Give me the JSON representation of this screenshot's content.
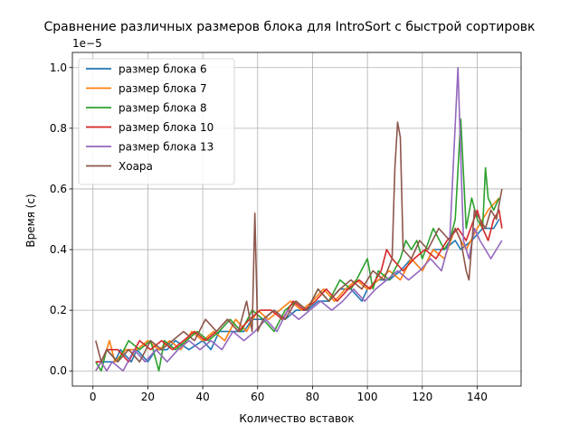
{
  "chart_data": {
    "type": "line",
    "title": "Сравнение различных размеров блока для IntroSort с быстрой сортировк",
    "xlabel": "Количество вставок",
    "ylabel": "Время (с)",
    "y_offset_label": "1e−5",
    "xlim": [
      -7.5,
      156
    ],
    "ylim": [
      -0.05,
      1.05
    ],
    "x_ticks": [
      0,
      20,
      40,
      60,
      80,
      100,
      120,
      140
    ],
    "y_ticks": [
      0.0,
      0.2,
      0.4,
      0.6,
      0.8,
      1.0
    ],
    "x_tick_labels": [
      "0",
      "20",
      "40",
      "60",
      "80",
      "100",
      "120",
      "140"
    ],
    "y_tick_labels": [
      "0.0",
      "0.2",
      "0.4",
      "0.6",
      "0.8",
      "1.0"
    ],
    "grid": true,
    "legend_position": "upper-left",
    "series": [
      {
        "name": "размер блока 6",
        "color": "#1f77b4",
        "points": [
          [
            1,
            0.03
          ],
          [
            3,
            0.03
          ],
          [
            5,
            0.03
          ],
          [
            8,
            0.03
          ],
          [
            10,
            0.07
          ],
          [
            14,
            0.03
          ],
          [
            16,
            0.07
          ],
          [
            20,
            0.03
          ],
          [
            23,
            0.07
          ],
          [
            27,
            0.07
          ],
          [
            30,
            0.1
          ],
          [
            35,
            0.07
          ],
          [
            40,
            0.1
          ],
          [
            43,
            0.07
          ],
          [
            46,
            0.13
          ],
          [
            50,
            0.13
          ],
          [
            55,
            0.13
          ],
          [
            58,
            0.17
          ],
          [
            62,
            0.17
          ],
          [
            66,
            0.2
          ],
          [
            70,
            0.17
          ],
          [
            74,
            0.2
          ],
          [
            78,
            0.2
          ],
          [
            82,
            0.23
          ],
          [
            86,
            0.23
          ],
          [
            90,
            0.27
          ],
          [
            94,
            0.27
          ],
          [
            98,
            0.23
          ],
          [
            100,
            0.27
          ],
          [
            104,
            0.3
          ],
          [
            108,
            0.3
          ],
          [
            112,
            0.33
          ],
          [
            116,
            0.37
          ],
          [
            120,
            0.33
          ],
          [
            124,
            0.4
          ],
          [
            128,
            0.4
          ],
          [
            132,
            0.43
          ],
          [
            134,
            0.4
          ],
          [
            138,
            0.43
          ],
          [
            142,
            0.47
          ],
          [
            146,
            0.47
          ],
          [
            148,
            0.5
          ]
        ]
      },
      {
        "name": "размер блока 7",
        "color": "#ff7f0e",
        "points": [
          [
            1,
            0.0
          ],
          [
            3,
            0.03
          ],
          [
            5,
            0.07
          ],
          [
            6,
            0.1
          ],
          [
            8,
            0.03
          ],
          [
            12,
            0.07
          ],
          [
            16,
            0.07
          ],
          [
            20,
            0.1
          ],
          [
            24,
            0.07
          ],
          [
            28,
            0.1
          ],
          [
            32,
            0.07
          ],
          [
            36,
            0.13
          ],
          [
            40,
            0.1
          ],
          [
            44,
            0.13
          ],
          [
            48,
            0.1
          ],
          [
            52,
            0.17
          ],
          [
            56,
            0.13
          ],
          [
            60,
            0.2
          ],
          [
            64,
            0.17
          ],
          [
            68,
            0.2
          ],
          [
            72,
            0.23
          ],
          [
            76,
            0.2
          ],
          [
            80,
            0.23
          ],
          [
            84,
            0.27
          ],
          [
            88,
            0.23
          ],
          [
            92,
            0.27
          ],
          [
            96,
            0.3
          ],
          [
            100,
            0.27
          ],
          [
            104,
            0.3
          ],
          [
            108,
            0.33
          ],
          [
            112,
            0.3
          ],
          [
            116,
            0.37
          ],
          [
            120,
            0.33
          ],
          [
            124,
            0.4
          ],
          [
            128,
            0.37
          ],
          [
            132,
            0.47
          ],
          [
            134,
            0.43
          ],
          [
            136,
            0.4
          ],
          [
            140,
            0.47
          ],
          [
            144,
            0.53
          ],
          [
            148,
            0.57
          ]
        ]
      },
      {
        "name": "размер блока 8",
        "color": "#2ca02c",
        "points": [
          [
            1,
            0.03
          ],
          [
            3,
            0.0
          ],
          [
            5,
            0.07
          ],
          [
            9,
            0.03
          ],
          [
            13,
            0.1
          ],
          [
            17,
            0.07
          ],
          [
            21,
            0.1
          ],
          [
            24,
            0.0
          ],
          [
            26,
            0.1
          ],
          [
            30,
            0.07
          ],
          [
            34,
            0.1
          ],
          [
            38,
            0.13
          ],
          [
            42,
            0.1
          ],
          [
            46,
            0.13
          ],
          [
            50,
            0.17
          ],
          [
            54,
            0.13
          ],
          [
            58,
            0.2
          ],
          [
            62,
            0.17
          ],
          [
            66,
            0.13
          ],
          [
            70,
            0.2
          ],
          [
            74,
            0.23
          ],
          [
            78,
            0.2
          ],
          [
            82,
            0.27
          ],
          [
            86,
            0.23
          ],
          [
            90,
            0.3
          ],
          [
            94,
            0.27
          ],
          [
            96,
            0.3
          ],
          [
            100,
            0.37
          ],
          [
            102,
            0.27
          ],
          [
            104,
            0.33
          ],
          [
            108,
            0.3
          ],
          [
            112,
            0.37
          ],
          [
            114,
            0.43
          ],
          [
            116,
            0.4
          ],
          [
            118,
            0.43
          ],
          [
            120,
            0.37
          ],
          [
            124,
            0.47
          ],
          [
            128,
            0.4
          ],
          [
            130,
            0.43
          ],
          [
            132,
            0.5
          ],
          [
            134,
            0.83
          ],
          [
            136,
            0.47
          ],
          [
            138,
            0.57
          ],
          [
            140,
            0.5
          ],
          [
            142,
            0.47
          ],
          [
            143,
            0.67
          ],
          [
            144,
            0.57
          ],
          [
            146,
            0.53
          ],
          [
            148,
            0.57
          ]
        ]
      },
      {
        "name": "размер блока 10",
        "color": "#d62728",
        "points": [
          [
            1,
            0.03
          ],
          [
            3,
            0.03
          ],
          [
            5,
            0.07
          ],
          [
            9,
            0.07
          ],
          [
            13,
            0.03
          ],
          [
            17,
            0.1
          ],
          [
            21,
            0.07
          ],
          [
            25,
            0.1
          ],
          [
            29,
            0.07
          ],
          [
            33,
            0.1
          ],
          [
            37,
            0.13
          ],
          [
            41,
            0.1
          ],
          [
            45,
            0.13
          ],
          [
            49,
            0.17
          ],
          [
            53,
            0.13
          ],
          [
            57,
            0.17
          ],
          [
            61,
            0.2
          ],
          [
            65,
            0.2
          ],
          [
            69,
            0.17
          ],
          [
            73,
            0.23
          ],
          [
            77,
            0.2
          ],
          [
            81,
            0.23
          ],
          [
            85,
            0.27
          ],
          [
            89,
            0.23
          ],
          [
            93,
            0.27
          ],
          [
            97,
            0.3
          ],
          [
            101,
            0.27
          ],
          [
            105,
            0.33
          ],
          [
            107,
            0.4
          ],
          [
            109,
            0.37
          ],
          [
            113,
            0.33
          ],
          [
            117,
            0.37
          ],
          [
            121,
            0.4
          ],
          [
            125,
            0.37
          ],
          [
            129,
            0.43
          ],
          [
            133,
            0.47
          ],
          [
            136,
            0.43
          ],
          [
            140,
            0.53
          ],
          [
            142,
            0.47
          ],
          [
            144,
            0.43
          ],
          [
            146,
            0.5
          ],
          [
            148,
            0.53
          ],
          [
            149,
            0.47
          ]
        ]
      },
      {
        "name": "размер блока 13",
        "color": "#9467bd",
        "points": [
          [
            1,
            0.0
          ],
          [
            3,
            0.03
          ],
          [
            5,
            0.0
          ],
          [
            7,
            0.03
          ],
          [
            11,
            0.0
          ],
          [
            15,
            0.07
          ],
          [
            19,
            0.03
          ],
          [
            23,
            0.07
          ],
          [
            27,
            0.03
          ],
          [
            31,
            0.07
          ],
          [
            35,
            0.1
          ],
          [
            39,
            0.07
          ],
          [
            43,
            0.1
          ],
          [
            47,
            0.07
          ],
          [
            51,
            0.13
          ],
          [
            55,
            0.1
          ],
          [
            59,
            0.13
          ],
          [
            63,
            0.17
          ],
          [
            67,
            0.13
          ],
          [
            71,
            0.2
          ],
          [
            75,
            0.17
          ],
          [
            79,
            0.2
          ],
          [
            83,
            0.23
          ],
          [
            87,
            0.2
          ],
          [
            91,
            0.23
          ],
          [
            95,
            0.27
          ],
          [
            99,
            0.23
          ],
          [
            103,
            0.27
          ],
          [
            107,
            0.3
          ],
          [
            111,
            0.33
          ],
          [
            115,
            0.3
          ],
          [
            119,
            0.33
          ],
          [
            123,
            0.37
          ],
          [
            127,
            0.33
          ],
          [
            130,
            0.43
          ],
          [
            133,
            1.0
          ],
          [
            135,
            0.43
          ],
          [
            137,
            0.37
          ],
          [
            139,
            0.47
          ],
          [
            141,
            0.43
          ],
          [
            143,
            0.4
          ],
          [
            145,
            0.37
          ],
          [
            147,
            0.4
          ],
          [
            149,
            0.43
          ]
        ]
      },
      {
        "name": "Хоара",
        "color": "#8c564b",
        "points": [
          [
            1,
            0.1
          ],
          [
            3,
            0.03
          ],
          [
            5,
            0.07
          ],
          [
            9,
            0.03
          ],
          [
            13,
            0.07
          ],
          [
            17,
            0.03
          ],
          [
            21,
            0.1
          ],
          [
            25,
            0.07
          ],
          [
            29,
            0.1
          ],
          [
            33,
            0.13
          ],
          [
            37,
            0.1
          ],
          [
            41,
            0.17
          ],
          [
            45,
            0.13
          ],
          [
            49,
            0.17
          ],
          [
            53,
            0.13
          ],
          [
            56,
            0.23
          ],
          [
            58,
            0.13
          ],
          [
            59,
            0.52
          ],
          [
            60,
            0.13
          ],
          [
            62,
            0.17
          ],
          [
            66,
            0.2
          ],
          [
            70,
            0.17
          ],
          [
            74,
            0.23
          ],
          [
            78,
            0.2
          ],
          [
            82,
            0.27
          ],
          [
            86,
            0.23
          ],
          [
            90,
            0.27
          ],
          [
            94,
            0.3
          ],
          [
            98,
            0.27
          ],
          [
            102,
            0.33
          ],
          [
            106,
            0.3
          ],
          [
            109,
            0.37
          ],
          [
            110,
            0.67
          ],
          [
            111,
            0.82
          ],
          [
            112,
            0.77
          ],
          [
            113,
            0.4
          ],
          [
            116,
            0.37
          ],
          [
            119,
            0.43
          ],
          [
            122,
            0.4
          ],
          [
            126,
            0.47
          ],
          [
            130,
            0.43
          ],
          [
            132,
            0.47
          ],
          [
            134,
            0.43
          ],
          [
            136,
            0.33
          ],
          [
            137,
            0.3
          ],
          [
            139,
            0.53
          ],
          [
            141,
            0.5
          ],
          [
            143,
            0.47
          ],
          [
            145,
            0.53
          ],
          [
            147,
            0.5
          ],
          [
            149,
            0.6
          ]
        ]
      }
    ]
  }
}
